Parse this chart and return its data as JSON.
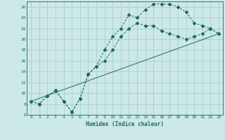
{
  "bg_color": "#cce8e8",
  "grid_color": "#aacece",
  "line_color": "#1a6b5a",
  "xlabel": "Humidex (Indice chaleur)",
  "xlim": [
    -0.5,
    23.5
  ],
  "ylim": [
    6,
    27
  ],
  "yticks": [
    6,
    8,
    10,
    12,
    14,
    16,
    18,
    20,
    22,
    24,
    26
  ],
  "xticks": [
    0,
    1,
    2,
    3,
    4,
    5,
    6,
    7,
    8,
    9,
    10,
    11,
    12,
    13,
    14,
    15,
    16,
    17,
    18,
    19,
    20,
    21,
    22,
    23
  ],
  "curve1_x": [
    0,
    1,
    2,
    3,
    4,
    5,
    6,
    7,
    8,
    9,
    10,
    11,
    12,
    13,
    14,
    15,
    16,
    17,
    18,
    19,
    20,
    21,
    22,
    23
  ],
  "curve1_y": [
    8.5,
    8.0,
    9.5,
    10.5,
    8.5,
    6.5,
    9.0,
    13.5,
    15.0,
    18.0,
    20.5,
    22.0,
    24.5,
    24.0,
    25.5,
    26.5,
    26.5,
    26.5,
    26.0,
    25.0,
    23.0,
    22.5,
    22.0,
    21.0
  ],
  "curve2_x": [
    0,
    1,
    2,
    3,
    4,
    5,
    6,
    7,
    8,
    9,
    10,
    11,
    12,
    13,
    14,
    15,
    16,
    17,
    18,
    19,
    20,
    21,
    22,
    23
  ],
  "curve2_y": [
    8.5,
    8.0,
    9.5,
    10.5,
    8.5,
    6.5,
    9.0,
    13.5,
    15.0,
    16.0,
    18.0,
    20.5,
    22.0,
    23.0,
    22.5,
    22.5,
    21.5,
    21.0,
    20.5,
    20.0,
    20.5,
    21.0,
    22.0,
    21.0
  ],
  "curve3_x": [
    0,
    23
  ],
  "curve3_y": [
    8.5,
    21.0
  ]
}
